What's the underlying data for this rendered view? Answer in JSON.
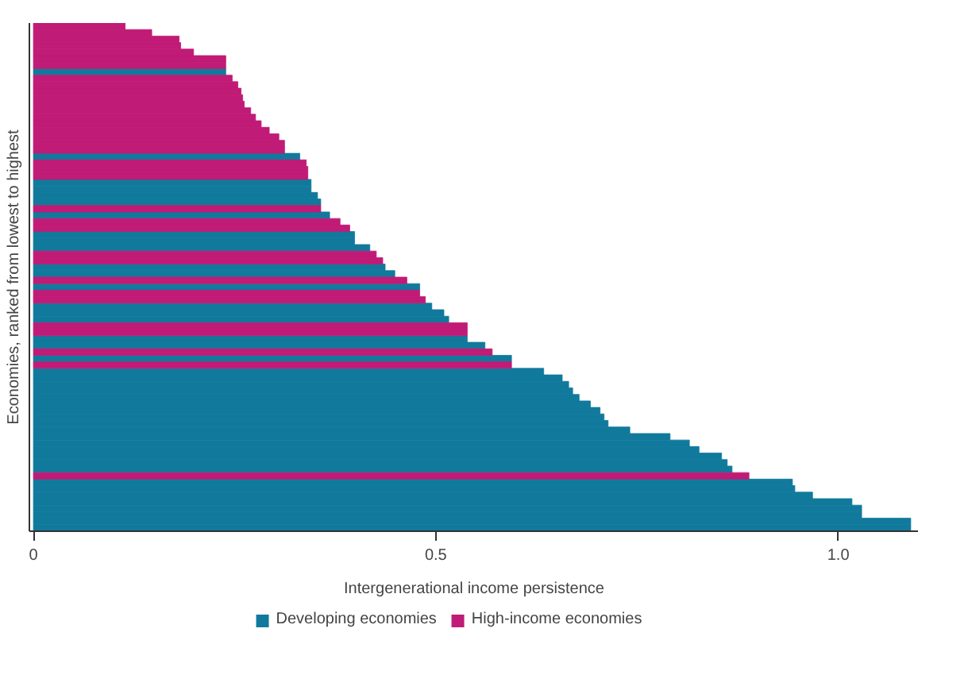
{
  "chart_data": {
    "type": "bar",
    "orientation": "horizontal",
    "xlabel": "Intergenerational income persistence",
    "ylabel": "Economies, ranked from lowest to highest",
    "categories": [
      null,
      null,
      null,
      null,
      null,
      null,
      null,
      null,
      null,
      null,
      null,
      null,
      null,
      null,
      null,
      null,
      null,
      null,
      null,
      null,
      null,
      null,
      null,
      null,
      null,
      null,
      null,
      null,
      null,
      null,
      null,
      null,
      null,
      null,
      null,
      null,
      null,
      null,
      null,
      null,
      null,
      null,
      null,
      null,
      null,
      null,
      null,
      null,
      null,
      null,
      null,
      null,
      null,
      null,
      null,
      null,
      null,
      null,
      null,
      null,
      null,
      null,
      null,
      null,
      null,
      null,
      null,
      null,
      null,
      null,
      null,
      null,
      null,
      null,
      null,
      null,
      null,
      null
    ],
    "series": [
      {
        "name": "Developing economies",
        "color": "#117a9c",
        "values": [
          null,
          null,
          null,
          null,
          null,
          null,
          null,
          0.239,
          null,
          null,
          null,
          null,
          null,
          null,
          null,
          null,
          null,
          null,
          null,
          null,
          0.331,
          null,
          null,
          null,
          0.345,
          0.345,
          0.353,
          0.357,
          null,
          0.368,
          null,
          null,
          0.399,
          0.399,
          0.418,
          null,
          null,
          0.437,
          0.449,
          null,
          0.48,
          null,
          null,
          0.495,
          0.51,
          0.516,
          null,
          null,
          0.539,
          0.561,
          null,
          0.594,
          null,
          0.634,
          0.657,
          0.665,
          0.67,
          0.678,
          0.692,
          0.704,
          0.709,
          0.714,
          0.741,
          0.791,
          0.815,
          0.827,
          0.855,
          0.862,
          0.868,
          null,
          0.943,
          0.946,
          0.968,
          1.017,
          1.029,
          1.029,
          1.09,
          1.09
        ]
      },
      {
        "name": "High-income economies",
        "color": "#c01b76",
        "values": [
          0.114,
          0.147,
          0.181,
          0.183,
          0.199,
          0.239,
          0.239,
          null,
          0.247,
          0.254,
          0.258,
          0.26,
          0.262,
          0.27,
          0.276,
          0.283,
          0.293,
          0.305,
          0.312,
          0.312,
          null,
          0.339,
          0.341,
          0.341,
          null,
          null,
          null,
          null,
          0.357,
          null,
          0.381,
          0.393,
          null,
          null,
          null,
          0.426,
          0.434,
          null,
          null,
          0.464,
          null,
          0.48,
          0.487,
          null,
          null,
          null,
          0.539,
          0.539,
          null,
          null,
          0.57,
          null,
          0.594,
          null,
          null,
          null,
          null,
          null,
          null,
          null,
          null,
          null,
          null,
          null,
          null,
          null,
          null,
          null,
          null,
          0.889,
          null,
          null,
          null,
          null,
          null,
          null,
          null,
          null
        ]
      }
    ],
    "xlim": [
      -0.005,
      1.1
    ],
    "xticks": [
      0,
      0.5,
      {
        "value": 1,
        "label": "1.0"
      }
    ],
    "legend": "bottom"
  }
}
